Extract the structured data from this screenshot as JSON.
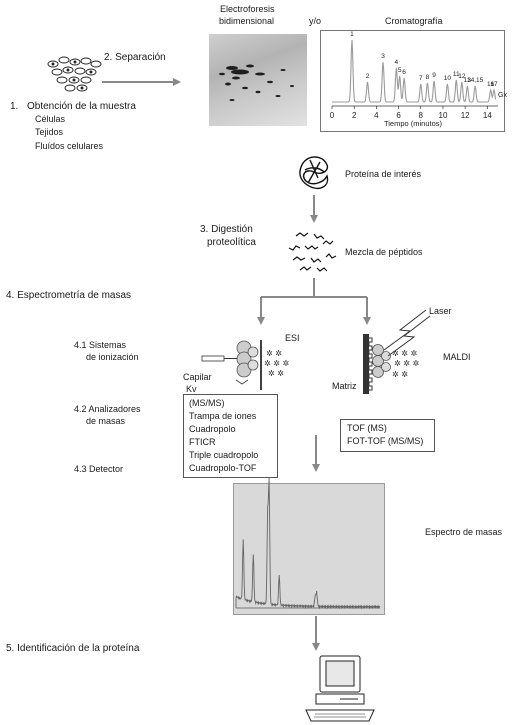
{
  "step1": {
    "number": "1.",
    "title": "Obtención de la muestra",
    "items": [
      "Células",
      "Tejidos",
      "Fluídos celulares"
    ]
  },
  "step2": {
    "label": "2. Separación"
  },
  "gel": {
    "title_line1": "Electroforesis",
    "title_line2": "bidimensional"
  },
  "connector": "y/o",
  "chromatography": {
    "title": "Cromatografía",
    "x_ticks": [
      "0",
      "2",
      "4",
      "6",
      "8",
      "10",
      "12",
      "14"
    ],
    "xlabel": "Tiempo (minutos)",
    "end_label": "Gx",
    "peak_labels": [
      "1",
      "2",
      "3",
      "4",
      "5",
      "6",
      "7",
      "8",
      "9",
      "10",
      "11",
      "12",
      "13",
      "14,15",
      "16",
      "17"
    ]
  },
  "protein_label": "Proteína de interés",
  "step3": {
    "line1": "3. Digestión",
    "line2": "proteolítica"
  },
  "peptides_label": "Mezcla de péptidos",
  "step4": {
    "title": "4. Espectrometría de masas",
    "s41_line1": "4.1 Sistemas",
    "s41_line2": "de ionización",
    "s42_line1": "4.2 Analizadores",
    "s42_line2": "de masas",
    "s43": "4.3 Detector"
  },
  "esi": {
    "label": "ESI",
    "capillary": "Capilar",
    "kv": "Kv"
  },
  "maldi": {
    "label": "MALDI",
    "laser": "Laser",
    "matrix": "Matriz"
  },
  "esi_analyzers": [
    "(MS/MS)",
    "Trampa de iones",
    "Cuadropolo",
    "FTICR",
    "Triple cuadropolo",
    "Cuadropolo-TOF"
  ],
  "maldi_analyzers": [
    "TOF (MS)",
    "FOT-TOF (MS/MS)"
  ],
  "spectrum_label": "Espectro de masas",
  "step5": {
    "label": "5. Identificación de la proteína"
  },
  "colors": {
    "arrow": "#888888",
    "gel_spots": "#1e1e1e",
    "chrom_line": "#9a9a9a",
    "spectrum_bg": "#d9d9d9"
  }
}
